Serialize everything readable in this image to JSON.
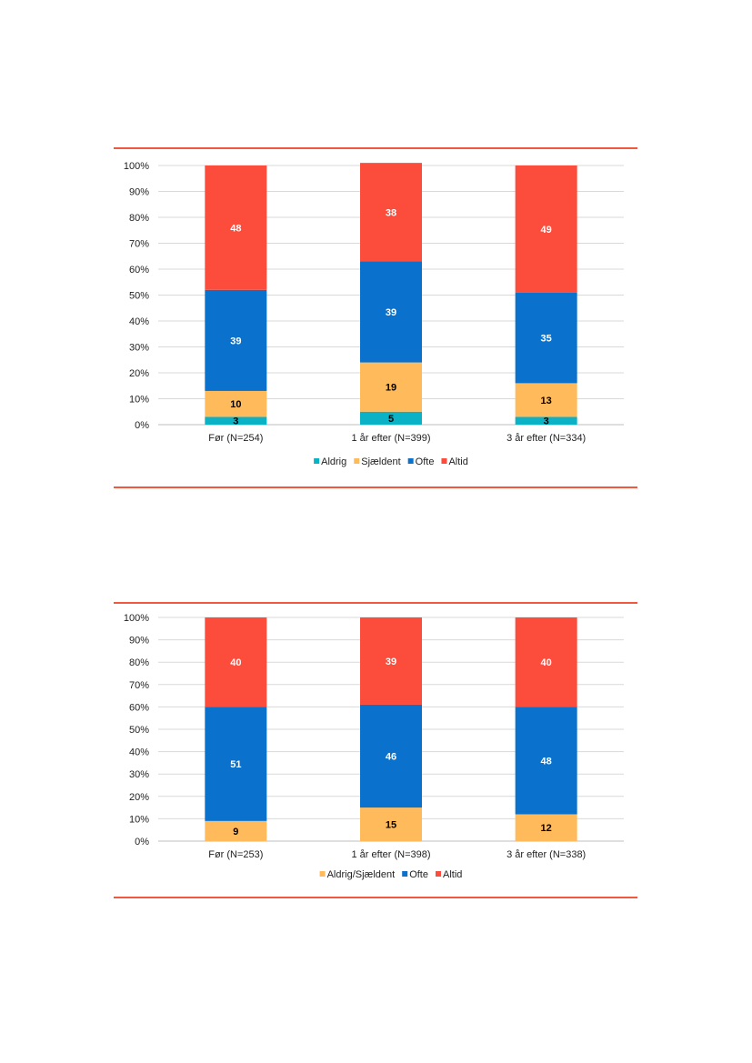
{
  "colors": {
    "aldrig": "#0bb1c4",
    "sjaeldent": "#ffba5c",
    "ofte": "#0a72cc",
    "altid": "#fb4c3c",
    "rule": "#f0593f",
    "grid": "#d9d9d9"
  },
  "chart_data": [
    {
      "type": "bar",
      "stacked": true,
      "categories": [
        "Før (N=254)",
        "1 år efter (N=399)",
        "3 år efter (N=334)"
      ],
      "series": [
        {
          "name": "Aldrig",
          "values": [
            3,
            5,
            3
          ],
          "color": "#0bb1c4",
          "label_color": "#000000"
        },
        {
          "name": "Sjældent",
          "values": [
            10,
            19,
            13
          ],
          "color": "#ffba5c",
          "label_color": "#000000"
        },
        {
          "name": "Ofte",
          "values": [
            39,
            39,
            35
          ],
          "color": "#0a72cc",
          "label_color": "#ffffff"
        },
        {
          "name": "Altid",
          "values": [
            48,
            38,
            49
          ],
          "color": "#fb4c3c",
          "label_color": "#ffffff"
        }
      ],
      "yticks": [
        "0%",
        "10%",
        "20%",
        "30%",
        "40%",
        "50%",
        "60%",
        "70%",
        "80%",
        "90%",
        "100%"
      ],
      "ylim": [
        0,
        100
      ],
      "grid": true,
      "legend_position": "bottom"
    },
    {
      "type": "bar",
      "stacked": true,
      "categories": [
        "Før (N=253)",
        "1 år efter (N=398)",
        "3 år efter (N=338)"
      ],
      "series": [
        {
          "name": "Aldrig/Sjældent",
          "values": [
            9,
            15,
            12
          ],
          "color": "#ffba5c",
          "label_color": "#000000"
        },
        {
          "name": "Ofte",
          "values": [
            51,
            46,
            48
          ],
          "color": "#0a72cc",
          "label_color": "#ffffff"
        },
        {
          "name": "Altid",
          "values": [
            40,
            39,
            40
          ],
          "color": "#fb4c3c",
          "label_color": "#ffffff"
        }
      ],
      "yticks": [
        "0%",
        "10%",
        "20%",
        "30%",
        "40%",
        "50%",
        "60%",
        "70%",
        "80%",
        "90%",
        "100%"
      ],
      "ylim": [
        0,
        100
      ],
      "grid": true,
      "legend_position": "bottom"
    }
  ]
}
